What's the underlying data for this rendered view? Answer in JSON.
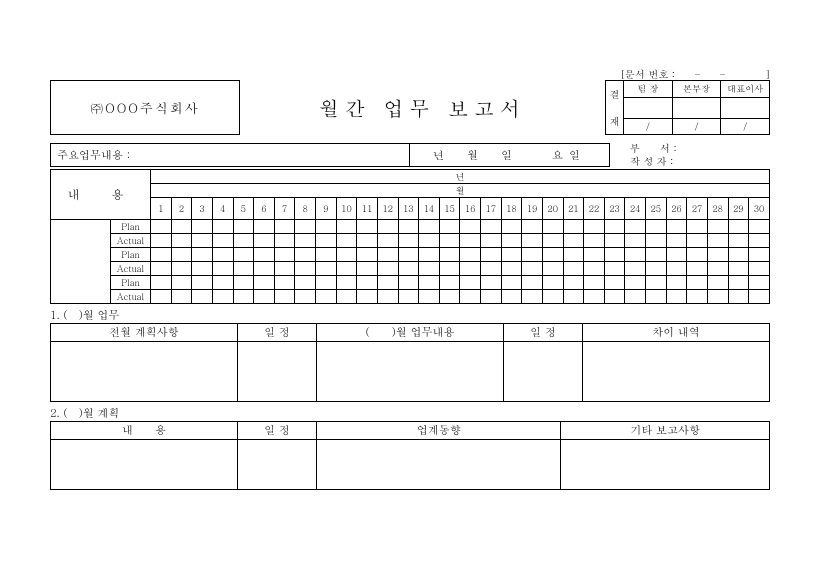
{
  "doc_no": "[문서 번호 :　　–　　–　　　　]",
  "company": "㈜OOO주식회사",
  "title": "월간 업무 보고서",
  "approval": {
    "vlabel_top": "결",
    "vlabel_bottom": "재",
    "headers": [
      "팀 장",
      "본부장",
      "대표이사"
    ],
    "dates": [
      "/",
      "/",
      "/"
    ]
  },
  "info": {
    "main_label": "주요업무내용 :",
    "date_label": "년　월　일　　요일",
    "dept": "부　　서 :",
    "author": "작 성 자 :"
  },
  "calendar": {
    "lbl": "내　용",
    "year": "년",
    "month": "월",
    "days": [
      "1",
      "2",
      "3",
      "4",
      "5",
      "6",
      "7",
      "8",
      "9",
      "10",
      "11",
      "12",
      "13",
      "14",
      "15",
      "16",
      "17",
      "18",
      "19",
      "20",
      "21",
      "22",
      "23",
      "24",
      "25",
      "26",
      "27",
      "28",
      "29",
      "30"
    ],
    "plan": "Plan",
    "actual": "Actual"
  },
  "sec1": {
    "title": "1. (　)월 업무",
    "headers": [
      "전월 계획사항",
      "일 정",
      "(　　)월 업무내용",
      "일 정",
      "차이 내역"
    ]
  },
  "sec2": {
    "title": "2. (　)월 계획",
    "headers": [
      "내　　용",
      "일 정",
      "업계동향",
      "기타 보고사항"
    ]
  }
}
